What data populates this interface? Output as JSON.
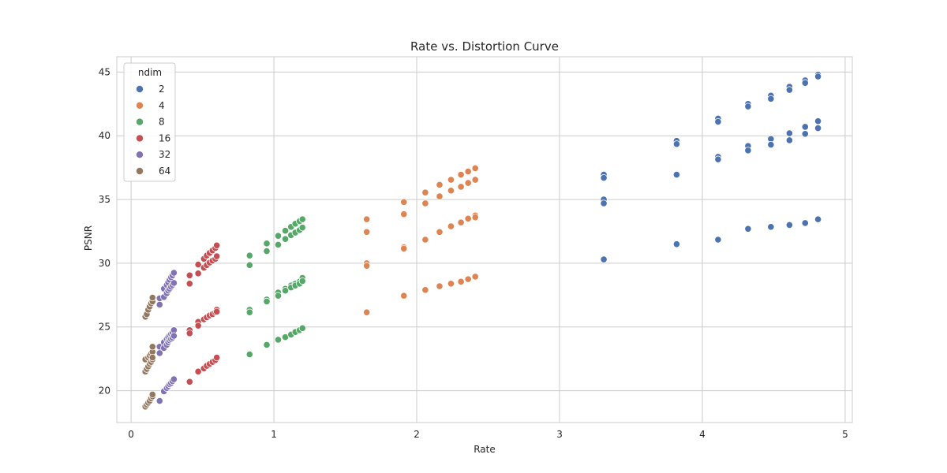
{
  "chart_data": {
    "type": "scatter",
    "title": "Rate vs. Distortion Curve",
    "xlabel": "Rate",
    "ylabel": "PSNR",
    "xlim": [
      -0.1,
      5.05
    ],
    "ylim": [
      17.5,
      46.2
    ],
    "xticks": [
      0,
      1,
      2,
      3,
      4,
      5
    ],
    "yticks": [
      20,
      25,
      30,
      35,
      40,
      45
    ],
    "grid": true,
    "legend": {
      "title": "ndim",
      "position": "top-left"
    },
    "series": [
      {
        "name": "2",
        "color": "#4c72b0",
        "points": [
          [
            3.31,
            36.95
          ],
          [
            3.31,
            36.7
          ],
          [
            3.31,
            35.0
          ],
          [
            3.31,
            34.7
          ],
          [
            3.31,
            30.3
          ],
          [
            3.82,
            39.6
          ],
          [
            3.82,
            39.35
          ],
          [
            3.82,
            36.95
          ],
          [
            3.82,
            31.5
          ],
          [
            4.11,
            41.35
          ],
          [
            4.11,
            41.1
          ],
          [
            4.11,
            38.35
          ],
          [
            4.11,
            38.15
          ],
          [
            4.11,
            31.85
          ],
          [
            4.32,
            42.5
          ],
          [
            4.32,
            42.3
          ],
          [
            4.32,
            39.2
          ],
          [
            4.32,
            38.85
          ],
          [
            4.32,
            32.7
          ],
          [
            4.48,
            43.15
          ],
          [
            4.48,
            42.9
          ],
          [
            4.48,
            39.75
          ],
          [
            4.48,
            39.3
          ],
          [
            4.48,
            32.85
          ],
          [
            4.61,
            43.85
          ],
          [
            4.61,
            43.6
          ],
          [
            4.61,
            40.2
          ],
          [
            4.61,
            39.65
          ],
          [
            4.61,
            33.0
          ],
          [
            4.72,
            44.35
          ],
          [
            4.72,
            44.15
          ],
          [
            4.72,
            40.7
          ],
          [
            4.72,
            40.15
          ],
          [
            4.72,
            33.15
          ],
          [
            4.81,
            44.8
          ],
          [
            4.81,
            44.65
          ],
          [
            4.81,
            41.15
          ],
          [
            4.81,
            40.6
          ],
          [
            4.81,
            33.45
          ]
        ]
      },
      {
        "name": "4",
        "color": "#dd8452",
        "points": [
          [
            1.65,
            33.45
          ],
          [
            1.65,
            32.45
          ],
          [
            1.65,
            30.0
          ],
          [
            1.65,
            29.8
          ],
          [
            1.65,
            26.15
          ],
          [
            1.91,
            34.8
          ],
          [
            1.91,
            33.85
          ],
          [
            1.91,
            31.25
          ],
          [
            1.91,
            31.15
          ],
          [
            1.91,
            27.45
          ],
          [
            2.06,
            35.55
          ],
          [
            2.06,
            34.7
          ],
          [
            2.06,
            31.85
          ],
          [
            2.06,
            27.9
          ],
          [
            2.16,
            36.15
          ],
          [
            2.16,
            35.25
          ],
          [
            2.16,
            32.45
          ],
          [
            2.16,
            28.2
          ],
          [
            2.24,
            36.55
          ],
          [
            2.24,
            35.7
          ],
          [
            2.24,
            32.9
          ],
          [
            2.24,
            28.4
          ],
          [
            2.31,
            36.95
          ],
          [
            2.31,
            36.0
          ],
          [
            2.31,
            33.2
          ],
          [
            2.31,
            28.55
          ],
          [
            2.36,
            37.2
          ],
          [
            2.36,
            36.3
          ],
          [
            2.36,
            33.5
          ],
          [
            2.36,
            28.75
          ],
          [
            2.41,
            37.45
          ],
          [
            2.41,
            36.55
          ],
          [
            2.41,
            33.75
          ],
          [
            2.41,
            33.6
          ],
          [
            2.41,
            28.95
          ]
        ]
      },
      {
        "name": "8",
        "color": "#55a868",
        "points": [
          [
            0.83,
            30.6
          ],
          [
            0.83,
            29.85
          ],
          [
            0.83,
            26.35
          ],
          [
            0.83,
            26.15
          ],
          [
            0.83,
            22.85
          ],
          [
            0.95,
            31.55
          ],
          [
            0.95,
            30.95
          ],
          [
            0.95,
            27.15
          ],
          [
            0.95,
            27.0
          ],
          [
            0.95,
            23.6
          ],
          [
            1.03,
            32.15
          ],
          [
            1.03,
            31.45
          ],
          [
            1.03,
            27.7
          ],
          [
            1.03,
            27.45
          ],
          [
            1.03,
            24.0
          ],
          [
            1.08,
            32.55
          ],
          [
            1.08,
            31.9
          ],
          [
            1.08,
            28.0
          ],
          [
            1.08,
            27.85
          ],
          [
            1.08,
            24.2
          ],
          [
            1.12,
            32.85
          ],
          [
            1.12,
            32.2
          ],
          [
            1.12,
            28.25
          ],
          [
            1.12,
            28.1
          ],
          [
            1.12,
            24.4
          ],
          [
            1.15,
            33.1
          ],
          [
            1.15,
            32.4
          ],
          [
            1.15,
            28.4
          ],
          [
            1.15,
            28.25
          ],
          [
            1.15,
            24.6
          ],
          [
            1.18,
            33.3
          ],
          [
            1.18,
            32.6
          ],
          [
            1.18,
            28.55
          ],
          [
            1.18,
            28.4
          ],
          [
            1.18,
            24.75
          ],
          [
            1.2,
            33.45
          ],
          [
            1.2,
            32.8
          ],
          [
            1.2,
            28.85
          ],
          [
            1.2,
            28.6
          ],
          [
            1.2,
            24.9
          ]
        ]
      },
      {
        "name": "16",
        "color": "#c44e52",
        "points": [
          [
            0.41,
            29.05
          ],
          [
            0.41,
            28.4
          ],
          [
            0.41,
            24.75
          ],
          [
            0.41,
            24.5
          ],
          [
            0.41,
            20.7
          ],
          [
            0.47,
            29.9
          ],
          [
            0.47,
            29.2
          ],
          [
            0.47,
            25.4
          ],
          [
            0.47,
            25.1
          ],
          [
            0.47,
            21.5
          ],
          [
            0.51,
            30.35
          ],
          [
            0.51,
            29.65
          ],
          [
            0.51,
            25.6
          ],
          [
            0.51,
            21.75
          ],
          [
            0.53,
            30.6
          ],
          [
            0.53,
            29.85
          ],
          [
            0.53,
            25.75
          ],
          [
            0.53,
            21.95
          ],
          [
            0.55,
            30.8
          ],
          [
            0.55,
            30.05
          ],
          [
            0.55,
            25.9
          ],
          [
            0.55,
            22.1
          ],
          [
            0.57,
            31.0
          ],
          [
            0.57,
            30.2
          ],
          [
            0.57,
            26.0
          ],
          [
            0.57,
            22.25
          ],
          [
            0.59,
            31.2
          ],
          [
            0.59,
            30.35
          ],
          [
            0.59,
            26.15
          ],
          [
            0.59,
            22.4
          ],
          [
            0.6,
            31.4
          ],
          [
            0.6,
            30.55
          ],
          [
            0.6,
            26.35
          ],
          [
            0.6,
            26.2
          ],
          [
            0.6,
            22.6
          ]
        ]
      },
      {
        "name": "32",
        "color": "#8172b3",
        "points": [
          [
            0.2,
            27.25
          ],
          [
            0.2,
            26.75
          ],
          [
            0.2,
            23.45
          ],
          [
            0.2,
            22.95
          ],
          [
            0.2,
            19.2
          ],
          [
            0.23,
            28.0
          ],
          [
            0.23,
            27.35
          ],
          [
            0.23,
            23.8
          ],
          [
            0.23,
            23.35
          ],
          [
            0.23,
            19.95
          ],
          [
            0.25,
            28.3
          ],
          [
            0.25,
            27.65
          ],
          [
            0.25,
            24.05
          ],
          [
            0.25,
            23.6
          ],
          [
            0.25,
            20.2
          ],
          [
            0.26,
            28.5
          ],
          [
            0.26,
            27.85
          ],
          [
            0.26,
            24.2
          ],
          [
            0.26,
            23.8
          ],
          [
            0.26,
            20.35
          ],
          [
            0.27,
            28.7
          ],
          [
            0.27,
            28.0
          ],
          [
            0.27,
            24.35
          ],
          [
            0.27,
            23.95
          ],
          [
            0.27,
            20.5
          ],
          [
            0.28,
            28.9
          ],
          [
            0.28,
            28.15
          ],
          [
            0.28,
            24.45
          ],
          [
            0.28,
            24.05
          ],
          [
            0.28,
            20.6
          ],
          [
            0.29,
            29.05
          ],
          [
            0.29,
            28.3
          ],
          [
            0.29,
            24.55
          ],
          [
            0.29,
            24.15
          ],
          [
            0.29,
            20.75
          ],
          [
            0.3,
            29.25
          ],
          [
            0.3,
            28.45
          ],
          [
            0.3,
            24.75
          ],
          [
            0.3,
            24.3
          ],
          [
            0.3,
            20.9
          ]
        ]
      },
      {
        "name": "64",
        "color": "#937860",
        "points": [
          [
            0.1,
            25.8
          ],
          [
            0.1,
            22.45
          ],
          [
            0.1,
            21.5
          ],
          [
            0.1,
            18.75
          ],
          [
            0.11,
            26.0
          ],
          [
            0.11,
            21.7
          ],
          [
            0.11,
            18.9
          ],
          [
            0.12,
            26.35
          ],
          [
            0.12,
            22.6
          ],
          [
            0.12,
            21.9
          ],
          [
            0.12,
            19.05
          ],
          [
            0.13,
            26.6
          ],
          [
            0.13,
            22.75
          ],
          [
            0.13,
            22.1
          ],
          [
            0.13,
            19.2
          ],
          [
            0.14,
            26.85
          ],
          [
            0.14,
            22.9
          ],
          [
            0.14,
            22.25
          ],
          [
            0.14,
            19.4
          ],
          [
            0.15,
            27.0
          ],
          [
            0.15,
            23.05
          ],
          [
            0.15,
            22.45
          ],
          [
            0.15,
            19.55
          ],
          [
            0.15,
            27.3
          ],
          [
            0.15,
            23.45
          ],
          [
            0.15,
            22.6
          ],
          [
            0.15,
            19.7
          ]
        ]
      }
    ]
  }
}
